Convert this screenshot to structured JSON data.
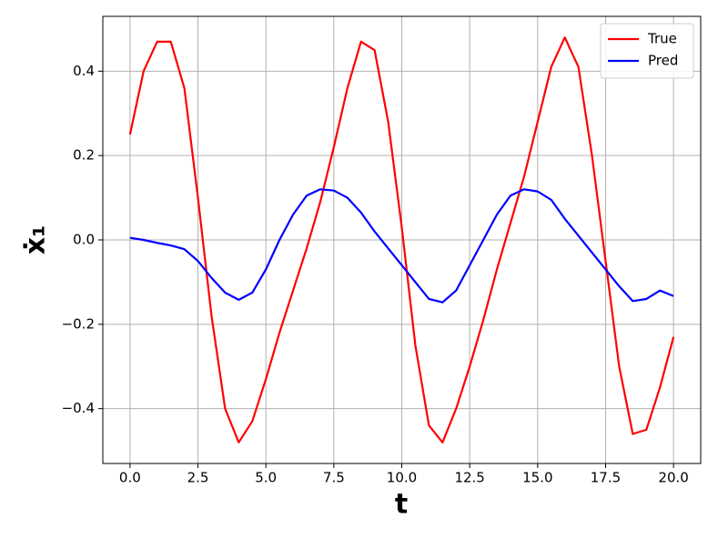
{
  "chart_data": {
    "type": "line",
    "xlabel": "t",
    "ylabel": "ẋ₁",
    "x": [
      0,
      0.5,
      1,
      1.5,
      2,
      2.5,
      3,
      3.5,
      4,
      4.5,
      5,
      5.5,
      6,
      6.5,
      7,
      7.5,
      8,
      8.5,
      9,
      9.5,
      10,
      10.5,
      11,
      11.5,
      12,
      12.5,
      13,
      13.5,
      14,
      14.5,
      15,
      15.5,
      16,
      16.5,
      17,
      17.5,
      18,
      18.5,
      19,
      19.5,
      20
    ],
    "series": [
      {
        "name": "True",
        "color": "#ff0000",
        "values": [
          0.25,
          0.4,
          0.47,
          0.47,
          0.36,
          0.1,
          -0.18,
          -0.4,
          -0.48,
          -0.43,
          -0.33,
          -0.22,
          -0.12,
          -0.02,
          0.09,
          0.22,
          0.36,
          0.47,
          0.45,
          0.28,
          0.03,
          -0.25,
          -0.44,
          -0.48,
          -0.4,
          -0.3,
          -0.19,
          -0.07,
          0.04,
          0.15,
          0.28,
          0.41,
          0.48,
          0.41,
          0.2,
          -0.05,
          -0.3,
          -0.46,
          -0.45,
          -0.35,
          -0.23
        ]
      },
      {
        "name": "Pred",
        "color": "#0000ff",
        "values": [
          0.005,
          0.0,
          -0.007,
          -0.013,
          -0.022,
          -0.05,
          -0.09,
          -0.125,
          -0.142,
          -0.125,
          -0.07,
          0.0,
          0.06,
          0.105,
          0.12,
          0.117,
          0.1,
          0.065,
          0.02,
          -0.02,
          -0.06,
          -0.1,
          -0.14,
          -0.148,
          -0.12,
          -0.06,
          0.0,
          0.06,
          0.105,
          0.12,
          0.115,
          0.095,
          0.05,
          0.01,
          -0.03,
          -0.07,
          -0.11,
          -0.145,
          -0.14,
          -0.12,
          -0.133
        ]
      }
    ],
    "xlim": [
      -1.0,
      21.0
    ],
    "ylim": [
      -0.53,
      0.53
    ],
    "xticks": [
      {
        "value": 0,
        "label": "0.0"
      },
      2.5,
      {
        "value": 5,
        "label": "5.0"
      },
      7.5,
      {
        "value": 10,
        "label": "10.0"
      },
      12.5,
      {
        "value": 15,
        "label": "15.0"
      },
      17.5,
      {
        "value": 20,
        "label": "20.0"
      }
    ],
    "yticks": [
      {
        "value": -0.4,
        "label": "−0.4"
      },
      {
        "value": -0.2,
        "label": "−0.2"
      },
      {
        "value": 0,
        "label": "0.0"
      },
      0.2,
      0.4
    ],
    "grid": true,
    "legend": "upper right"
  }
}
